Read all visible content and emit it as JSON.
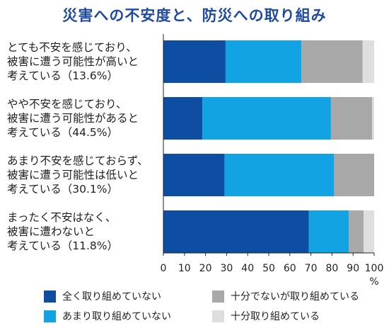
{
  "chart_data": {
    "type": "bar",
    "orientation": "horizontal",
    "stacked": true,
    "title": "災害への不安度と、防災への取り組み",
    "xlabel": "%",
    "xlim": [
      0,
      100
    ],
    "xticks": [
      "0",
      "10",
      "20",
      "30",
      "40",
      "50",
      "60",
      "70",
      "80",
      "90",
      "100"
    ],
    "categories": [
      {
        "lines": [
          "とても不安を感じており、",
          "被害に遭う可能性が高いと",
          "考えている（13.6%）"
        ]
      },
      {
        "lines": [
          "やや不安を感じており、",
          "被害に遭う可能性があると",
          "考えている（44.5%）"
        ]
      },
      {
        "lines": [
          "あまり不安を感じておらず、",
          "被害に遭う可能性は低いと",
          "考えている（30.1%）"
        ]
      },
      {
        "lines": [
          "まったく不安はなく、",
          "被害に遭わないと",
          "考えている（11.8%）"
        ]
      }
    ],
    "series": [
      {
        "name": "全く取り組めていない",
        "color": "#0d4ea3",
        "values": [
          29.5,
          18.5,
          29,
          69
        ]
      },
      {
        "name": "あまり取り組めていない",
        "color": "#11a3e3",
        "values": [
          36,
          61,
          52,
          19
        ]
      },
      {
        "name": "十分でないが取り組めている",
        "color": "#a8a8a8",
        "values": [
          29,
          19.5,
          19,
          7
        ]
      },
      {
        "name": "十分取り組めている",
        "color": "#dedede",
        "values": [
          5.5,
          1,
          0,
          5
        ]
      }
    ],
    "grid": false,
    "legend_position": "bottom"
  },
  "colors": {
    "title": "#1f4aa3",
    "axis": "#222222"
  }
}
